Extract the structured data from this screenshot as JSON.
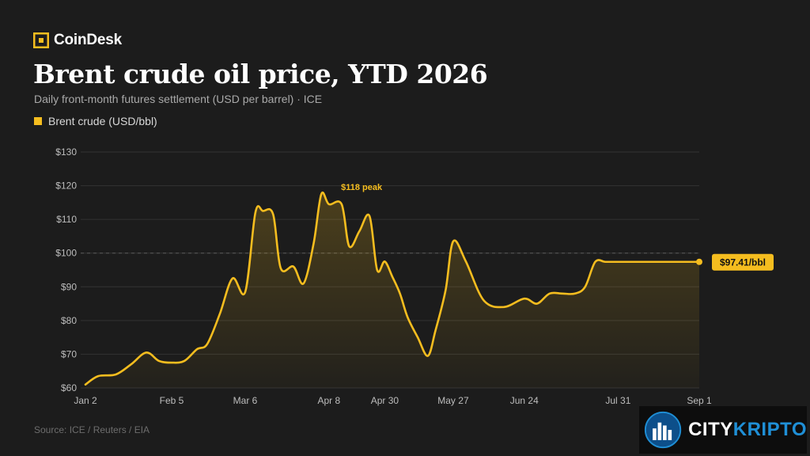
{
  "brand": {
    "name": "CoinDesk"
  },
  "header": {
    "title": "Brent crude oil price, YTD 2026",
    "subtitle": "Daily front-month futures settlement (USD per barrel) · ICE"
  },
  "colors": {
    "line": "#f5bd1f",
    "grid": "#333333",
    "background": "#1c1c1c"
  },
  "chart_data": {
    "type": "line",
    "title": "Brent crude oil price, YTD 2026",
    "subtitle": "Daily front-month futures settlement (USD per barrel) · ICE",
    "ylim": [
      60,
      130
    ],
    "y_ticks": [
      60,
      70,
      80,
      90,
      100,
      110,
      120,
      130
    ],
    "y_tick_labels": [
      "$60",
      "$70",
      "$80",
      "$90",
      "$100",
      "$110",
      "$120",
      "$130"
    ],
    "x_ticks": [
      "2026-01-02",
      "2026-02-05",
      "2026-03-06",
      "2026-04-08",
      "2026-04-30",
      "2026-05-27",
      "2026-06-24",
      "2026-07-31",
      "2026-09-01"
    ],
    "x_tick_labels": [
      "Jan 2",
      "Feb 5",
      "Mar 6",
      "Apr 8",
      "Apr 30",
      "May 27",
      "Jun 24",
      "Jul 31",
      "Sep 1"
    ],
    "grid": true,
    "reference_line": 100,
    "legend_position": "top-left",
    "series": [
      {
        "name": "Brent crude (USD/bbl)",
        "color": "#f5bd1f",
        "x": [
          "2026-01-02",
          "2026-01-07",
          "2026-01-14",
          "2026-01-20",
          "2026-01-26",
          "2026-01-31",
          "2026-02-05",
          "2026-02-10",
          "2026-02-15",
          "2026-02-19",
          "2026-02-24",
          "2026-03-01",
          "2026-03-06",
          "2026-03-10",
          "2026-03-13",
          "2026-03-17",
          "2026-03-20",
          "2026-03-25",
          "2026-03-29",
          "2026-04-02",
          "2026-04-05",
          "2026-04-08",
          "2026-04-13",
          "2026-04-16",
          "2026-04-20",
          "2026-04-24",
          "2026-04-27",
          "2026-04-30",
          "2026-05-03",
          "2026-05-06",
          "2026-05-09",
          "2026-05-13",
          "2026-05-17",
          "2026-05-20",
          "2026-05-24",
          "2026-05-27",
          "2026-06-01",
          "2026-06-08",
          "2026-06-16",
          "2026-06-24",
          "2026-06-29",
          "2026-07-04",
          "2026-07-09",
          "2026-07-14",
          "2026-07-18",
          "2026-07-22",
          "2026-07-26",
          "2026-07-31",
          "2026-08-04",
          "2026-08-09",
          "2026-08-14",
          "2026-08-18",
          "2026-08-22",
          "2026-08-26",
          "2026-09-01"
        ],
        "values": [
          61,
          63.5,
          64,
          67,
          70.5,
          68,
          67.5,
          68,
          71.5,
          73,
          82,
          92.5,
          88.5,
          112,
          112.5,
          111.5,
          95.5,
          96,
          91,
          103,
          117.5,
          114.5,
          114.5,
          102,
          106.5,
          111,
          95,
          97.5,
          93,
          88,
          81,
          75,
          69.5,
          77,
          89,
          103.5,
          97.5,
          86,
          84,
          86.5,
          85,
          88,
          88,
          88,
          90,
          97.41,
          97.41,
          97.41,
          97.41,
          97.41,
          97.41,
          97.41,
          97.41,
          97.41,
          97.41
        ]
      }
    ],
    "annotations": [
      {
        "label": "$118 peak",
        "x": "2026-04-24",
        "y": 118
      },
      {
        "label": "$97.41/bbl",
        "x": "2026-09-01",
        "y": 97.41
      }
    ]
  },
  "legend": {
    "label": "Brent crude (USD/bbl)"
  },
  "footer": {
    "source": "Source: ICE / Reuters / EIA"
  },
  "watermark": {
    "part_a": "CITY",
    "part_b": "KRIPTO"
  }
}
